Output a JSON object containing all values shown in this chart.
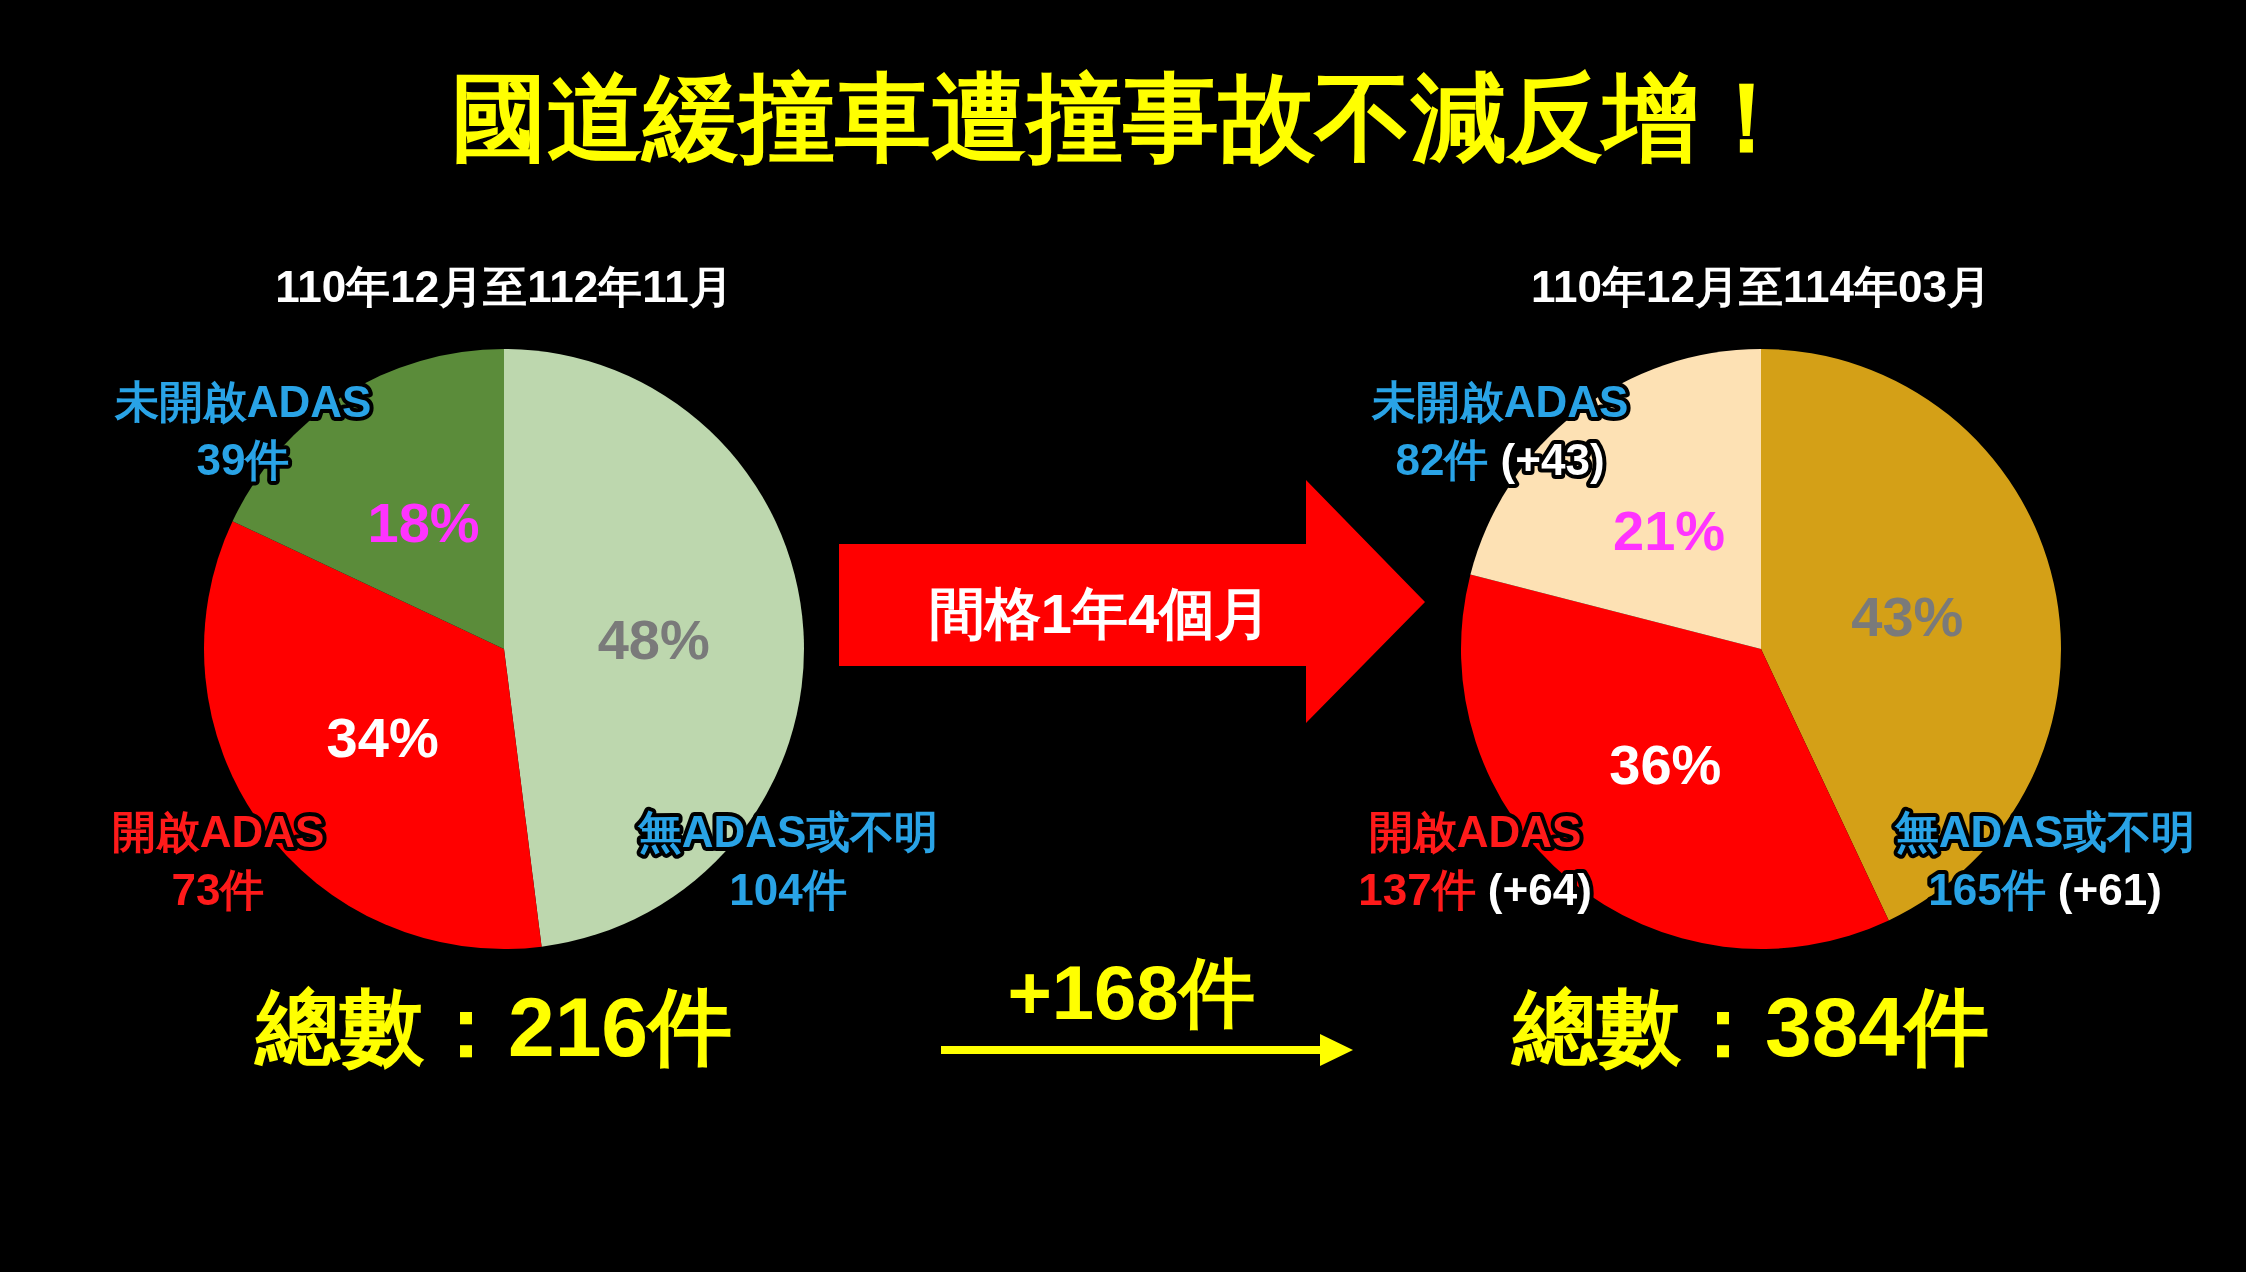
{
  "chart_data": [
    {
      "type": "pie",
      "title": "國道緩撞車遭撞事故不減反增！",
      "subtitle": "110年12月至112年11月",
      "categories": [
        "無ADAS或不明\n104件",
        "開啟ADAS\n73件",
        "未開啟ADAS\n39件"
      ],
      "values": [
        48,
        34,
        18
      ],
      "colors": [
        "#bdd7ae",
        "#ff0000",
        "#5b8c3a"
      ],
      "value_labels": [
        "48%",
        "34%",
        "18%"
      ],
      "annotations": [
        "總數：216件"
      ]
    },
    {
      "type": "other",
      "annotations": [
        "間格1年4個月",
        "+168件"
      ]
    },
    {
      "type": "pie",
      "subtitle": "110年12月至114年03月",
      "categories": [
        "無ADAS或不明\n165件 (+61)",
        "開啟ADAS\n137件 (+64)",
        "未開啟ADAS\n82件 (+43)"
      ],
      "values": [
        43,
        36,
        21
      ],
      "colors": [
        "#d4a017",
        "#ff0000",
        "#fde1b4"
      ],
      "value_labels": [
        "43%",
        "36%",
        "21%"
      ],
      "annotations": [
        "總數：384件"
      ]
    }
  ]
}
